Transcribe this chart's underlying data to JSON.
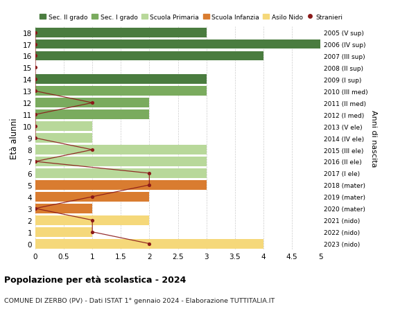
{
  "ages": [
    18,
    17,
    16,
    15,
    14,
    13,
    12,
    11,
    10,
    9,
    8,
    7,
    6,
    5,
    4,
    3,
    2,
    1,
    0
  ],
  "right_labels": [
    "2005 (V sup)",
    "2006 (IV sup)",
    "2007 (III sup)",
    "2008 (II sup)",
    "2009 (I sup)",
    "2010 (III med)",
    "2011 (II med)",
    "2012 (I med)",
    "2013 (V ele)",
    "2014 (IV ele)",
    "2015 (III ele)",
    "2016 (II ele)",
    "2017 (I ele)",
    "2018 (mater)",
    "2019 (mater)",
    "2020 (mater)",
    "2021 (nido)",
    "2022 (nido)",
    "2023 (nido)"
  ],
  "bar_values": [
    3,
    5,
    4,
    0,
    3,
    3,
    2,
    2,
    1,
    1,
    3,
    3,
    3,
    3,
    2,
    1,
    2,
    1,
    4
  ],
  "bar_colors": [
    "#4a7c3f",
    "#4a7c3f",
    "#4a7c3f",
    "#4a7c3f",
    "#4a7c3f",
    "#7aab5e",
    "#7aab5e",
    "#7aab5e",
    "#b8d89a",
    "#b8d89a",
    "#b8d89a",
    "#b8d89a",
    "#b8d89a",
    "#d97c30",
    "#d97c30",
    "#d97c30",
    "#f5d87a",
    "#f5d87a",
    "#f5d87a"
  ],
  "stranieri_values": [
    0,
    0,
    0,
    0,
    0,
    0,
    1,
    0,
    0,
    0,
    1,
    0,
    2,
    2,
    1,
    0,
    1,
    1,
    2
  ],
  "stranieri_color": "#8b1a1a",
  "title": "Popolazione per età scolastica - 2024",
  "subtitle": "COMUNE DI ZERBO (PV) - Dati ISTAT 1° gennaio 2024 - Elaborazione TUTTITALIA.IT",
  "ylabel": "Età alunni",
  "right_axis_label": "Anni di nascita",
  "xlim": [
    0,
    5.0
  ],
  "xticks": [
    0,
    0.5,
    1.0,
    1.5,
    2.0,
    2.5,
    3.0,
    3.5,
    4.0,
    4.5,
    5.0
  ],
  "legend_items": [
    {
      "label": "Sec. II grado",
      "color": "#4a7c3f",
      "type": "patch"
    },
    {
      "label": "Sec. I grado",
      "color": "#7aab5e",
      "type": "patch"
    },
    {
      "label": "Scuola Primaria",
      "color": "#b8d89a",
      "type": "patch"
    },
    {
      "label": "Scuola Infanzia",
      "color": "#d97c30",
      "type": "patch"
    },
    {
      "label": "Asilo Nido",
      "color": "#f5d87a",
      "type": "patch"
    },
    {
      "label": "Stranieri",
      "color": "#8b1a1a",
      "type": "marker"
    }
  ],
  "bg_color": "#ffffff",
  "grid_color": "#cccccc",
  "bar_height": 0.82
}
